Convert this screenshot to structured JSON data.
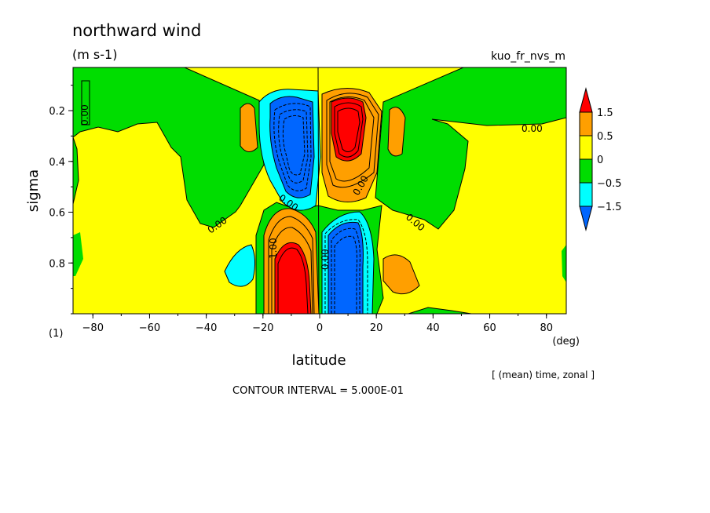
{
  "chart_data": {
    "type": "heatmap",
    "title": "northward wind",
    "units": "(m s-1)",
    "dataset_label": "kuo_fr_nvs_m",
    "xlabel": "latitude",
    "x_unit": "(deg)",
    "ylabel": "sigma",
    "y_unit": "(1)",
    "x_ticks": [
      -80,
      -60,
      -40,
      -20,
      0,
      20,
      40,
      60,
      80
    ],
    "x_tick_labels": [
      "−80",
      "−60",
      "−40",
      "−20",
      "0",
      "20",
      "40",
      "60",
      "80"
    ],
    "y_ticks": [
      0.2,
      0.4,
      0.6,
      0.8
    ],
    "y_tick_labels": [
      "0.2",
      "0.4",
      "0.6",
      "0.8"
    ],
    "xlim": [
      -87,
      87
    ],
    "ylim": [
      1.0,
      0.03
    ],
    "note": "[ (mean) time, zonal ]",
    "contour_interval": "CONTOUR INTERVAL = 5.000E-01",
    "contour_labels": [
      "0.00",
      "1.00"
    ],
    "colorbar": {
      "levels": [
        1.5,
        0.5,
        0,
        -0.5,
        -1.5
      ],
      "labels": [
        "1.5",
        "0.5",
        "0",
        "−0.5",
        "−1.5"
      ],
      "colors": [
        "#ff0000",
        "#ff9f00",
        "#ffff00",
        "#00dd00",
        "#00ffff",
        "#0066ff"
      ]
    },
    "features": [
      {
        "name": "southward upper-tropics cell",
        "lat_center": -8,
        "sigma_range": [
          0.12,
          0.48
        ],
        "sign": "negative",
        "peak": -2.0
      },
      {
        "name": "northward upper-tropics cell",
        "lat_center": 8,
        "sigma_range": [
          0.12,
          0.45
        ],
        "sign": "positive",
        "peak": 2.0
      },
      {
        "name": "northward lower-tropics cell",
        "lat_center": -9,
        "sigma_range": [
          0.68,
          1.0
        ],
        "sign": "positive",
        "peak": 2.0
      },
      {
        "name": "southward lower-tropics cell",
        "lat_center": 9,
        "sigma_range": [
          0.66,
          1.0
        ],
        "sign": "negative",
        "peak": -2.0
      }
    ]
  }
}
